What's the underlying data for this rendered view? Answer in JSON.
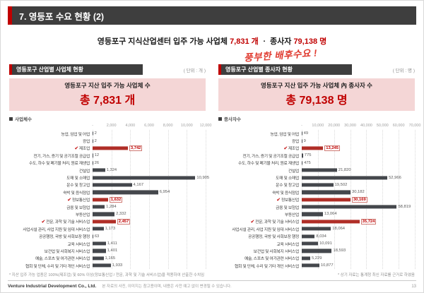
{
  "page": {
    "title": "7. 영등포 수요 현황 (2)"
  },
  "subtitle": {
    "part1": "영등포구 지식산업센터 입주 가능 사업체",
    "num1": "7,831 개",
    "part2": "ㆍ 종사자",
    "num2": "79,138 명",
    "annotation": "풍부한 배후수요 !"
  },
  "left_panel": {
    "header": "영등포구 산업별 사업체 현황",
    "unit": "( 단위 : 개 )",
    "box_title": "영등포구 지산 입주 가능 사업체 수",
    "box_value": "총 7,831 개",
    "legend": "사업체수",
    "footnote": "* 지산 입주 가능 업종은 100%(제조업) 및 60% 이상(정보통신업 / 전문, 과학 및 기술 서비스업)을 적용하여 산출한 수치임"
  },
  "right_panel": {
    "header": "영등포구 산업별 종사자 현황",
    "unit": "( 단위 : 명 )",
    "box_title": "영등포구 지산 입주 가능 사업체 內 종사자 수",
    "box_value": "총 79,138 명",
    "legend": "종사자수",
    "footnote": "* 상기 자료는 통계청 최신 자료를 근거로 하였음"
  },
  "footer": {
    "brand": "Venture Industrial Development Co., Ltd.",
    "disclaimer": "본 자료의 사진, 이미지는 참고용이며, 내용은 사전 예고 없이 변경될 수 있습니다.",
    "page": "13"
  },
  "colors": {
    "accent_red": "#c00000",
    "bar_default": "#44474c",
    "bar_highlight": "#b02e27",
    "pink_box": "#f4d6d6",
    "header_dark": "#3e3e3e"
  },
  "chart_data": [
    {
      "type": "bar",
      "orientation": "horizontal",
      "title": "영등포구 산업별 사업체 현황",
      "unit": "개",
      "legend": [
        "사업체수"
      ],
      "xlim": [
        0,
        12000
      ],
      "xticks": [
        "-",
        "2,000",
        "4,000",
        "6,000",
        "8,000",
        "10,000",
        "12,000"
      ],
      "categories": [
        "농업, 임업 및 어업",
        "광업",
        "제조업",
        "전기, 가스, 증기 및 공기조절 공급업",
        "수도, 하수 및 폐기물 처리, 원료 재생업",
        "건설업",
        "도매 및 소매업",
        "운수 및 창고업",
        "숙박 및 음식점업",
        "정보통신업",
        "금융 및 보험업",
        "부동산업",
        "전문, 과학 및 기술 서비스업",
        "사업시설 관리, 사업 지원 및 임대 서비스업",
        "공공행정, 국방 및 사회보장 행정",
        "교육 서비스업",
        "보건업 및 사회복지 서비스업",
        "예술, 스포츠 및 여가관련 서비스업",
        "협회 및 단체, 수리 및 기타 개인 서비스업"
      ],
      "values": [
        2,
        2,
        3742,
        12,
        26,
        1324,
        10905,
        4167,
        6954,
        1632,
        1284,
        2332,
        2457,
        1173,
        63,
        1411,
        1401,
        1165,
        1933
      ],
      "labels": [
        "2",
        "2",
        "3,742",
        "12",
        "26",
        "1,324",
        "10,905",
        "4,167",
        "6,954",
        "1,632",
        "1,284",
        "2,332",
        "2,457",
        "1,173",
        "63",
        "1,411",
        "1,401",
        "1,165",
        "1,933"
      ],
      "highlighted": [
        2,
        9,
        12
      ]
    },
    {
      "type": "bar",
      "orientation": "horizontal",
      "title": "영등포구 산업별 종사자 현황",
      "unit": "명",
      "legend": [
        "종사자수"
      ],
      "xlim": [
        0,
        70000
      ],
      "xticks": [
        "-",
        "10,000",
        "20,000",
        "30,000",
        "40,000",
        "50,000",
        "60,000",
        "70,000"
      ],
      "categories": [
        "농업, 임업 및 어업",
        "광업",
        "제조업",
        "전기, 가스, 증기 및 공기조절 공급업",
        "수도, 하수 및 폐기물 처리, 원료 재생업",
        "건설업",
        "도매 및 소매업",
        "운수 및 창고업",
        "숙박 및 음식점업",
        "정보통신업",
        "금융 및 보험업",
        "부동산업",
        "전문, 과학 및 기술 서비스업",
        "사업시설 관리, 사업 지원 및 임대 서비스업",
        "공공행정, 국방 및 사회보장 행정",
        "교육 서비스업",
        "보건업 및 사회복지 서비스업",
        "예술, 스포츠 및 여가관련 서비스업",
        "협회 및 단체, 수리 및 기타 개인 서비스업"
      ],
      "values": [
        49,
        9,
        13245,
        775,
        475,
        21820,
        52966,
        19502,
        30182,
        30169,
        58819,
        13064,
        35724,
        18064,
        8034,
        10091,
        18593,
        5229,
        10877
      ],
      "labels": [
        "49",
        "9",
        "13,245",
        "775",
        "475",
        "21,820",
        "52,966",
        "19,502",
        "30,182",
        "30,169",
        "58,819",
        "13,064",
        "35,724",
        "18,064",
        "8,034",
        "10,091",
        "18,593",
        "5,229",
        "10,877"
      ],
      "highlighted": [
        2,
        9,
        12
      ]
    }
  ]
}
